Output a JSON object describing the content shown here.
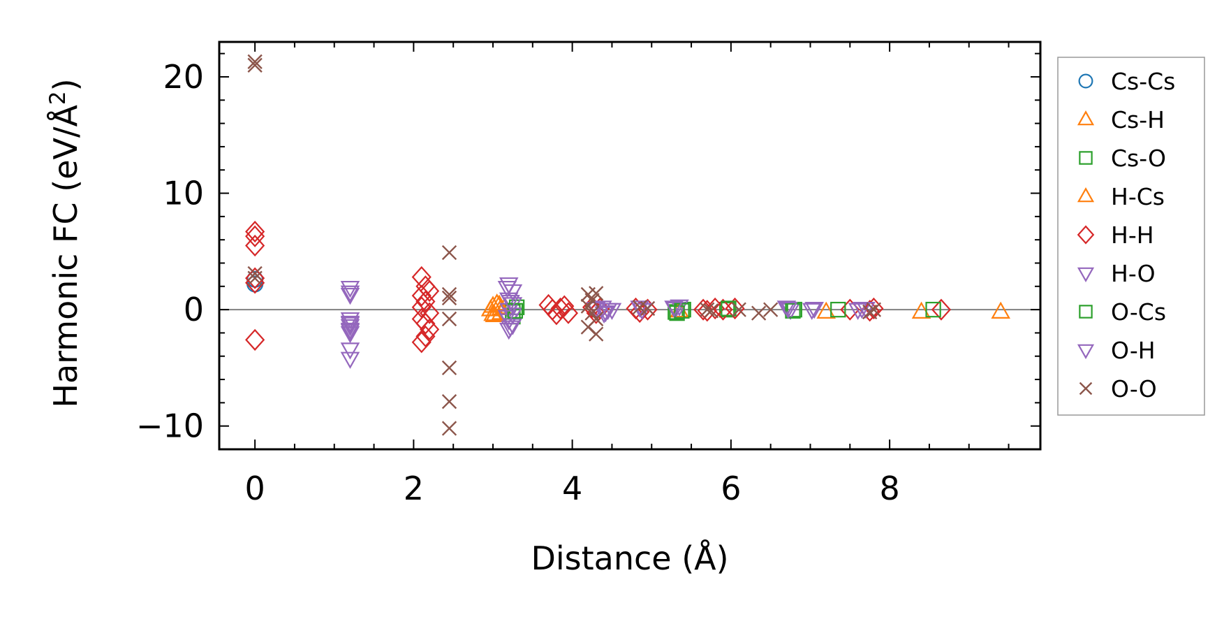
{
  "chart_data": {
    "type": "scatter",
    "title": "",
    "xlabel": "Distance (Å)",
    "ylabel_main": "Harmonic FC (eV/Å",
    "ylabel_sup": "2",
    "ylabel_close": ")",
    "xlim": [
      -0.45,
      9.9
    ],
    "ylim": [
      -12,
      23
    ],
    "xticks": [
      0,
      2,
      4,
      6,
      8
    ],
    "xtick_labels": [
      "0",
      "2",
      "4",
      "6",
      "8"
    ],
    "yticks": [
      -10,
      0,
      10,
      20
    ],
    "ytick_labels": [
      "−10",
      "0",
      "10",
      "20"
    ],
    "zero_line": true,
    "legend_position": "right",
    "series": [
      {
        "name": "Cs-Cs",
        "marker": "circle",
        "color": "#1f77b4",
        "filled": false,
        "points": [
          [
            0,
            2.2
          ],
          [
            0,
            2.6
          ]
        ]
      },
      {
        "name": "Cs-H",
        "marker": "triangle-up",
        "color": "#ff7f0e",
        "filled": false,
        "points": [
          [
            3.0,
            0.3
          ],
          [
            3.0,
            -0.4
          ],
          [
            3.05,
            0.5
          ],
          [
            3.1,
            0.1
          ],
          [
            3.1,
            -0.3
          ],
          [
            3.15,
            0.2
          ]
        ]
      },
      {
        "name": "Cs-O",
        "marker": "square",
        "color": "#2ca02c",
        "filled": false,
        "points": [
          [
            3.25,
            -0.2
          ],
          [
            3.25,
            -0.6
          ],
          [
            3.3,
            0.2
          ],
          [
            5.3,
            -0.2
          ],
          [
            5.4,
            0.0
          ],
          [
            5.95,
            0.0
          ],
          [
            6.8,
            0.0
          ]
        ]
      },
      {
        "name": "H-Cs",
        "marker": "triangle-up",
        "color": "#ff7f0e",
        "filled": false,
        "points": [
          [
            2.97,
            0.0
          ],
          [
            3.02,
            -0.5
          ],
          [
            3.08,
            0.4
          ],
          [
            5.35,
            -0.1
          ],
          [
            7.2,
            -0.2
          ],
          [
            8.4,
            -0.2
          ],
          [
            9.4,
            -0.2
          ]
        ]
      },
      {
        "name": "H-H",
        "marker": "diamond",
        "color": "#d62728",
        "filled": false,
        "points": [
          [
            0,
            6.7
          ],
          [
            0,
            6.3
          ],
          [
            0,
            5.5
          ],
          [
            0,
            2.7
          ],
          [
            0,
            2.3
          ],
          [
            0,
            -2.6
          ],
          [
            2.1,
            2.8
          ],
          [
            2.15,
            2.0
          ],
          [
            2.2,
            1.6
          ],
          [
            2.1,
            1.2
          ],
          [
            2.15,
            0.7
          ],
          [
            2.1,
            0.2
          ],
          [
            2.2,
            -0.3
          ],
          [
            2.1,
            -0.8
          ],
          [
            2.15,
            -1.2
          ],
          [
            2.2,
            -1.7
          ],
          [
            2.15,
            -2.3
          ],
          [
            2.1,
            -2.8
          ],
          [
            3.7,
            0.4
          ],
          [
            3.75,
            0.0
          ],
          [
            3.8,
            -0.4
          ],
          [
            3.9,
            0.3
          ],
          [
            3.95,
            -0.3
          ],
          [
            3.85,
            0.1
          ],
          [
            4.25,
            0.2
          ],
          [
            4.3,
            -0.3
          ],
          [
            4.35,
            0.1
          ],
          [
            4.8,
            0.1
          ],
          [
            4.85,
            -0.2
          ],
          [
            4.95,
            0.0
          ],
          [
            5.65,
            0.0
          ],
          [
            5.7,
            -0.1
          ],
          [
            5.8,
            0.1
          ],
          [
            5.9,
            0.0
          ],
          [
            6.05,
            0.1
          ],
          [
            7.5,
            0.0
          ],
          [
            7.75,
            -0.1
          ],
          [
            7.8,
            0.1
          ],
          [
            8.65,
            0.0
          ]
        ]
      },
      {
        "name": "H-O",
        "marker": "triangle-down",
        "color": "#9467bd",
        "filled": false,
        "points": [
          [
            1.2,
            1.9
          ],
          [
            1.2,
            1.3
          ],
          [
            1.2,
            -0.8
          ],
          [
            1.2,
            -1.1
          ],
          [
            1.2,
            -1.4
          ],
          [
            1.2,
            -1.7
          ],
          [
            1.2,
            -2.0
          ],
          [
            1.2,
            -3.4
          ],
          [
            1.2,
            -4.2
          ],
          [
            3.2,
            2.2
          ],
          [
            3.25,
            1.6
          ],
          [
            3.2,
            0.9
          ],
          [
            3.25,
            0.5
          ],
          [
            3.2,
            0.0
          ],
          [
            3.25,
            -0.4
          ],
          [
            3.2,
            -0.9
          ],
          [
            3.25,
            -1.3
          ],
          [
            3.2,
            -1.7
          ],
          [
            4.3,
            0.1
          ],
          [
            4.4,
            -0.3
          ],
          [
            4.45,
            0.0
          ],
          [
            4.85,
            0.2
          ],
          [
            5.3,
            0.1
          ],
          [
            5.35,
            0.3
          ],
          [
            6.7,
            0.2
          ],
          [
            6.75,
            0.0
          ],
          [
            7.05,
            0.1
          ],
          [
            7.6,
            0.0
          ],
          [
            7.7,
            0.1
          ]
        ]
      },
      {
        "name": "O-Cs",
        "marker": "square",
        "color": "#2ca02c",
        "filled": false,
        "points": [
          [
            3.28,
            -0.1
          ],
          [
            5.32,
            -0.3
          ],
          [
            5.38,
            -0.1
          ],
          [
            5.97,
            0.1
          ],
          [
            6.78,
            -0.1
          ],
          [
            7.35,
            0.0
          ],
          [
            8.55,
            0.0
          ]
        ]
      },
      {
        "name": "O-H",
        "marker": "triangle-down",
        "color": "#9467bd",
        "filled": false,
        "points": [
          [
            1.2,
            1.5
          ],
          [
            1.2,
            -1.2
          ],
          [
            1.2,
            -1.8
          ],
          [
            3.18,
            1.9
          ],
          [
            3.22,
            0.7
          ],
          [
            3.18,
            -0.6
          ],
          [
            3.22,
            -1.5
          ],
          [
            4.38,
            0.2
          ],
          [
            4.42,
            -0.2
          ],
          [
            4.5,
            0.0
          ],
          [
            4.88,
            0.0
          ],
          [
            5.28,
            0.2
          ],
          [
            6.72,
            0.1
          ],
          [
            7.02,
            0.0
          ],
          [
            7.65,
            0.1
          ]
        ]
      },
      {
        "name": "O-O",
        "marker": "x",
        "color": "#8c564b",
        "filled": false,
        "points": [
          [
            0,
            21.3
          ],
          [
            0,
            21.0
          ],
          [
            0,
            3.1
          ],
          [
            0,
            2.7
          ],
          [
            2.45,
            4.9
          ],
          [
            2.45,
            1.3
          ],
          [
            2.45,
            1.0
          ],
          [
            2.45,
            -0.8
          ],
          [
            2.45,
            -5.0
          ],
          [
            2.45,
            -7.9
          ],
          [
            2.45,
            -10.2
          ],
          [
            4.2,
            1.3
          ],
          [
            4.25,
            0.8
          ],
          [
            4.3,
            1.4
          ],
          [
            4.2,
            0.3
          ],
          [
            4.25,
            -0.3
          ],
          [
            4.3,
            -0.8
          ],
          [
            4.2,
            -1.5
          ],
          [
            4.3,
            -2.1
          ],
          [
            4.85,
            0.2
          ],
          [
            4.95,
            0.1
          ],
          [
            5.7,
            0.0
          ],
          [
            5.75,
            -0.1
          ],
          [
            6.1,
            0.0
          ],
          [
            6.35,
            -0.3
          ],
          [
            6.5,
            0.0
          ],
          [
            7.8,
            0.0
          ],
          [
            7.75,
            -0.2
          ]
        ]
      }
    ]
  }
}
